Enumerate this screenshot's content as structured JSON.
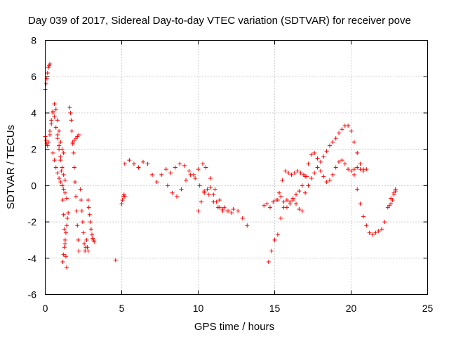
{
  "chart_data": {
    "type": "scatter",
    "title": "Day 039 of 2017, Sidereal Day-to-day VTEC variation (SDTVAR) for receiver pove",
    "xlabel": "GPS time / hours",
    "ylabel": "SDTVAR / TECUs",
    "xlim": [
      0,
      25
    ],
    "ylim": [
      -6,
      8
    ],
    "xticks": [
      0,
      5,
      10,
      15,
      20,
      25
    ],
    "yticks": [
      -6,
      -4,
      -2,
      0,
      2,
      4,
      6,
      8
    ],
    "xtick_labels": [
      "0",
      "5",
      "10",
      "15",
      "20",
      "25"
    ],
    "ytick_labels": [
      "-6",
      "-4",
      "-2",
      "0",
      "2",
      "4",
      "6",
      "8"
    ],
    "grid": true,
    "marker": "+",
    "color": "#ff0000",
    "series": [
      {
        "name": "s1",
        "x": [
          0.0,
          0.05,
          0.1,
          0.15,
          0.2,
          0.25,
          0.3
        ],
        "y": [
          5.3,
          5.6,
          5.9,
          6.2,
          6.5,
          6.6,
          6.7
        ]
      },
      {
        "name": "s2",
        "x": [
          0.0,
          0.05,
          0.1,
          0.15,
          0.2,
          0.3,
          0.4,
          0.5,
          0.6,
          0.7,
          0.8,
          0.9,
          1.0,
          1.1,
          1.2
        ],
        "y": [
          2.7,
          2.5,
          2.3,
          2.2,
          2.4,
          2.8,
          3.4,
          4.0,
          4.5,
          4.2,
          3.6,
          3.0,
          2.4,
          2.0,
          1.8
        ]
      },
      {
        "name": "s3",
        "x": [
          0.3,
          0.4,
          0.5,
          0.6,
          0.7,
          0.8,
          0.9,
          1.0,
          1.1,
          1.2,
          1.3
        ],
        "y": [
          3.0,
          3.6,
          4.1,
          3.8,
          3.2,
          2.6,
          2.0,
          1.4,
          1.0,
          0.6,
          0.3
        ]
      },
      {
        "name": "s4",
        "x": [
          0.5,
          0.6,
          0.7,
          0.8,
          0.9,
          1.0,
          1.1,
          1.2,
          1.3,
          1.4
        ],
        "y": [
          1.8,
          1.4,
          1.0,
          0.7,
          0.4,
          0.2,
          0.0,
          -0.2,
          -0.4,
          -0.7
        ]
      },
      {
        "name": "s5",
        "x": [
          0.8,
          0.9,
          1.0,
          1.05,
          1.1,
          1.15,
          1.2,
          1.25,
          1.3,
          1.35,
          1.4
        ],
        "y": [
          2.8,
          2.2,
          1.6,
          0.8,
          0.0,
          -0.8,
          -1.6,
          -2.4,
          -3.2,
          -3.9,
          -4.5
        ]
      },
      {
        "name": "s6",
        "x": [
          1.15,
          1.2,
          1.25,
          1.3,
          1.35,
          1.4,
          1.45,
          1.5
        ],
        "y": [
          -4.2,
          -3.8,
          -3.4,
          -3.0,
          -2.6,
          -2.2,
          -1.8,
          -1.5
        ]
      },
      {
        "name": "s7",
        "x": [
          1.6,
          1.65,
          1.7,
          1.75,
          1.8,
          1.85,
          1.9,
          1.95,
          2.0,
          2.05,
          2.1,
          2.15,
          2.2
        ],
        "y": [
          4.3,
          4.0,
          3.6,
          3.0,
          2.4,
          1.8,
          1.0,
          0.2,
          -0.6,
          -1.4,
          -2.2,
          -3.0,
          -3.6
        ]
      },
      {
        "name": "s8",
        "x": [
          1.8,
          1.9,
          2.0,
          2.1,
          2.2
        ],
        "y": [
          2.3,
          2.5,
          2.6,
          2.7,
          2.8
        ]
      },
      {
        "name": "s9",
        "x": [
          2.3,
          2.35,
          2.4,
          2.45,
          2.5,
          2.55,
          2.6,
          2.65,
          2.7,
          2.75,
          2.8
        ],
        "y": [
          -0.2,
          -0.8,
          -1.4,
          -2.0,
          -2.6,
          -3.2,
          -3.6,
          -3.4,
          -3.0,
          -3.4,
          -3.6
        ]
      },
      {
        "name": "s10",
        "x": [
          2.8,
          2.85,
          2.9,
          2.95,
          3.0,
          3.05,
          3.1,
          3.15,
          3.2
        ],
        "y": [
          -0.8,
          -1.2,
          -1.6,
          -2.0,
          -2.4,
          -2.7,
          -2.9,
          -3.0,
          -3.1
        ]
      },
      {
        "name": "s11",
        "x": [
          4.6
        ],
        "y": [
          -4.1
        ]
      },
      {
        "name": "s12",
        "x": [
          5.0,
          5.05,
          5.1,
          5.15,
          5.2
        ],
        "y": [
          -1.0,
          -0.8,
          -0.6,
          -0.5,
          -0.6
        ]
      },
      {
        "name": "s13",
        "x": [
          5.2,
          5.5,
          5.8,
          6.1,
          6.4,
          6.7,
          7.0,
          7.3,
          7.6,
          7.9,
          8.2,
          8.5,
          8.8,
          9.1,
          9.4,
          9.7,
          10.0,
          10.3,
          10.5,
          10.8,
          11.1,
          11.4,
          11.7,
          12.0,
          12.3,
          12.6,
          12.9,
          13.2
        ],
        "y": [
          1.2,
          1.4,
          1.2,
          1.0,
          1.3,
          1.2,
          0.6,
          0.2,
          0.6,
          0.9,
          0.7,
          1.0,
          1.2,
          1.1,
          0.8,
          0.6,
          0.9,
          1.2,
          1.0,
          0.4,
          -0.2,
          -0.8,
          -1.2,
          -1.4,
          -1.3,
          -1.4,
          -1.8,
          -2.2
        ]
      },
      {
        "name": "s14",
        "x": [
          8.0,
          8.3,
          8.6,
          8.9,
          9.2,
          9.5,
          9.8,
          10.1,
          10.4,
          10.7,
          11.0,
          11.3,
          11.6,
          11.9,
          12.2
        ],
        "y": [
          0.0,
          -0.4,
          -0.6,
          -0.2,
          0.3,
          0.6,
          0.4,
          0.0,
          -0.3,
          -0.5,
          -0.9,
          -1.2,
          -1.4,
          -1.4,
          -1.5
        ]
      },
      {
        "name": "s15",
        "x": [
          10.0,
          10.2,
          10.4,
          10.6,
          10.8,
          11.0,
          11.2,
          11.4,
          11.6
        ],
        "y": [
          -1.4,
          -0.9,
          -0.4,
          -0.2,
          -0.1,
          -0.5,
          -0.9,
          -1.2,
          -1.3
        ]
      },
      {
        "name": "s16",
        "x": [
          14.3,
          14.5,
          14.7,
          14.9,
          15.1,
          15.3,
          15.5,
          15.7,
          15.9,
          16.1,
          16.3,
          16.5,
          16.7,
          16.9,
          17.1
        ],
        "y": [
          -1.1,
          -1.0,
          -1.2,
          -0.9,
          -0.8,
          -0.4,
          0.3,
          0.8,
          0.7,
          0.6,
          0.7,
          0.8,
          0.7,
          0.6,
          0.5
        ]
      },
      {
        "name": "s17",
        "x": [
          14.6,
          14.8,
          15.0,
          15.2,
          15.4,
          15.6,
          15.8,
          16.0,
          16.2,
          16.4,
          16.6,
          16.8,
          17.0,
          17.2,
          17.4,
          17.6,
          17.8,
          18.0,
          18.2,
          18.4,
          18.6,
          18.8,
          19.0,
          19.2,
          19.4,
          19.6,
          19.8,
          20.0,
          20.2,
          20.4,
          20.6,
          20.8,
          21.0
        ],
        "y": [
          -4.2,
          -3.6,
          -3.0,
          -2.7,
          -1.8,
          -1.2,
          -0.8,
          -0.9,
          -0.7,
          -0.5,
          -0.3,
          0.0,
          0.5,
          1.2,
          1.7,
          1.8,
          1.5,
          0.8,
          0.5,
          0.2,
          0.3,
          0.6,
          1.0,
          1.3,
          1.4,
          1.2,
          0.9,
          0.8,
          0.9,
          1.0,
          0.9,
          0.8,
          0.9
        ]
      },
      {
        "name": "s18",
        "x": [
          15.2,
          15.4,
          15.6,
          15.8,
          16.0,
          16.2,
          16.4,
          16.6,
          16.8
        ],
        "y": [
          -0.8,
          -0.6,
          -0.9,
          -1.2,
          -1.0,
          -0.8,
          -1.0,
          -1.3,
          -1.4
        ]
      },
      {
        "name": "s19",
        "x": [
          17.0,
          17.2,
          17.4,
          17.6,
          17.8,
          18.0,
          18.2,
          18.4,
          18.6,
          18.8,
          19.0,
          19.2,
          19.4,
          19.6,
          19.8,
          20.0,
          20.2,
          20.4,
          20.6,
          20.8
        ],
        "y": [
          -0.4,
          0.0,
          0.4,
          0.7,
          1.0,
          1.3,
          1.6,
          1.9,
          2.2,
          2.4,
          2.6,
          2.9,
          3.1,
          3.3,
          3.3,
          3.0,
          2.4,
          1.8,
          1.2,
          0.9
        ]
      },
      {
        "name": "s20",
        "x": [
          20.2,
          20.4,
          20.6,
          20.8,
          21.0,
          21.2,
          21.4,
          21.6,
          21.8,
          22.0,
          22.2,
          22.4,
          22.6,
          22.8,
          22.9
        ],
        "y": [
          0.6,
          -0.2,
          -1.0,
          -1.7,
          -2.2,
          -2.6,
          -2.7,
          -2.6,
          -2.5,
          -2.4,
          -2.0,
          -1.2,
          -0.7,
          -0.4,
          -0.2
        ]
      },
      {
        "name": "s21",
        "x": [
          22.5,
          22.6,
          22.7,
          22.8,
          22.9
        ],
        "y": [
          -1.1,
          -1.0,
          -0.8,
          -0.5,
          -0.3
        ]
      }
    ]
  }
}
